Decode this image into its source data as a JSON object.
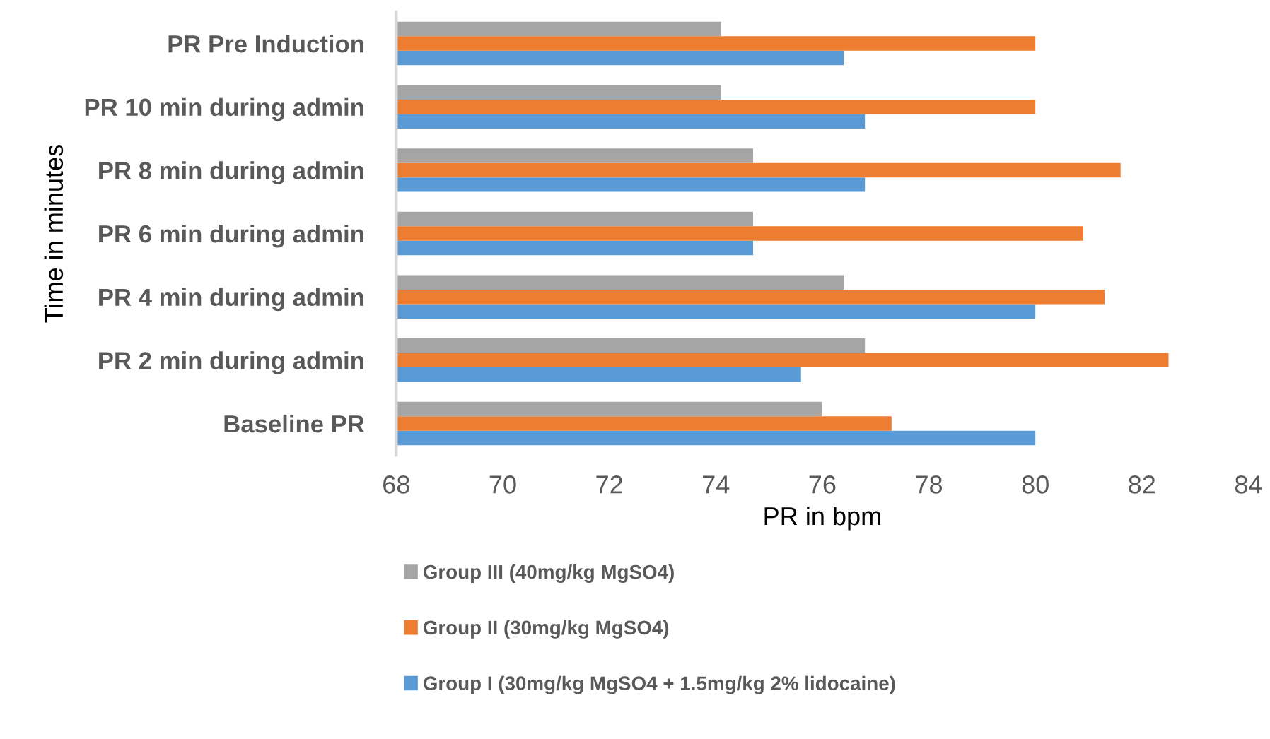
{
  "chart_data": {
    "type": "bar",
    "orientation": "horizontal",
    "xlabel": "PR in bpm",
    "ylabel": "Time in minutes",
    "categories": [
      "PR Pre Induction",
      "PR 10 min during admin",
      "PR 8 min during admin",
      "PR 6 min during admin",
      "PR 4 min during admin",
      "PR 2 min during admin",
      "Baseline PR"
    ],
    "series": [
      {
        "name": "Group I (30mg/kg MgSO4 + 1.5mg/kg 2% lidocaine)",
        "color": "#5b9bd5",
        "values": [
          76.4,
          76.8,
          76.8,
          74.7,
          80.0,
          75.6,
          80.0
        ]
      },
      {
        "name": "Group II (30mg/kg MgSO4)",
        "color": "#ed7d31",
        "values": [
          80.0,
          80.0,
          81.6,
          80.9,
          81.3,
          82.5,
          77.3
        ]
      },
      {
        "name": "Group III (40mg/kg MgSO4)",
        "color": "#a5a5a5",
        "values": [
          74.1,
          74.1,
          74.7,
          74.7,
          76.4,
          76.8,
          76.0
        ]
      }
    ],
    "xlim": [
      68,
      84
    ],
    "xticks": [
      68,
      70,
      72,
      74,
      76,
      78,
      80,
      82,
      84
    ],
    "grid": false,
    "legend": "bottom"
  }
}
